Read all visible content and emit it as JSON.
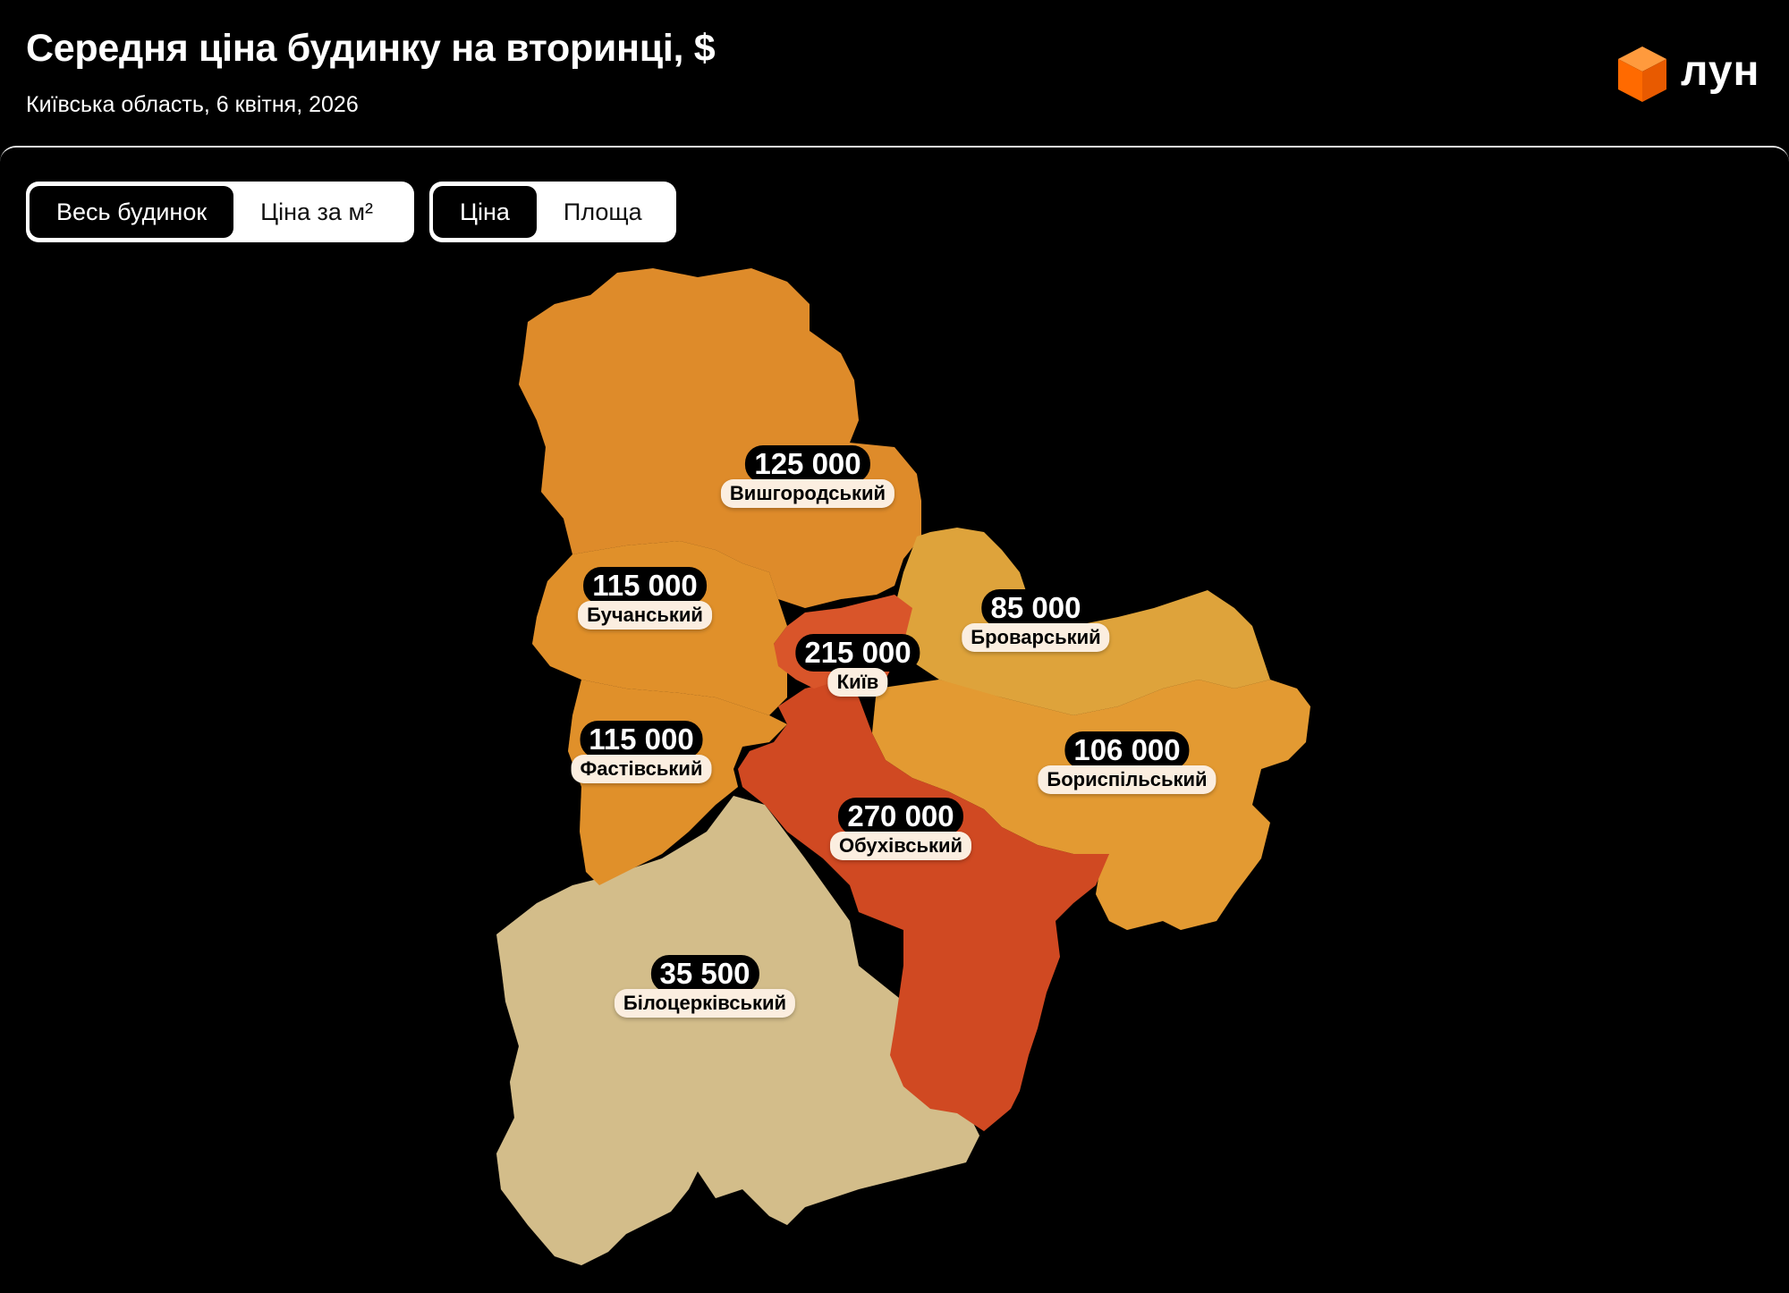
{
  "header": {
    "title": "Середня ціна будинку на вторинці, $",
    "subtitle": "Київська область, 6 квітня, 2026",
    "logo_text": "лун"
  },
  "toggles": {
    "mode": {
      "options": [
        "Весь будинок",
        "Ціна за м²"
      ],
      "selected": "Весь будинок"
    },
    "metric": {
      "options": [
        "Ціна",
        "Площа"
      ],
      "selected": "Ціна"
    }
  },
  "colors": {
    "background": "#000000",
    "accent": "#ff6a00",
    "high": "#d24a22",
    "mid": "#df8d2b",
    "low": "#d8bf8a"
  },
  "regions": [
    {
      "name": "Вишгородський",
      "value": "125 000",
      "color": "#de8b2b"
    },
    {
      "name": "Бучанський",
      "value": "115 000",
      "color": "#e0902c"
    },
    {
      "name": "Київ",
      "value": "215 000",
      "color": "#d9552a"
    },
    {
      "name": "Броварський",
      "value": "85 000",
      "color": "#dea33a"
    },
    {
      "name": "Фастівський",
      "value": "115 000",
      "color": "#e0902c"
    },
    {
      "name": "Бориспільський",
      "value": "106 000",
      "color": "#e39a33"
    },
    {
      "name": "Обухівський",
      "value": "270 000",
      "color": "#d04a22"
    },
    {
      "name": "Білоцерківський",
      "value": "35 500",
      "color": "#d3bd8a"
    }
  ]
}
